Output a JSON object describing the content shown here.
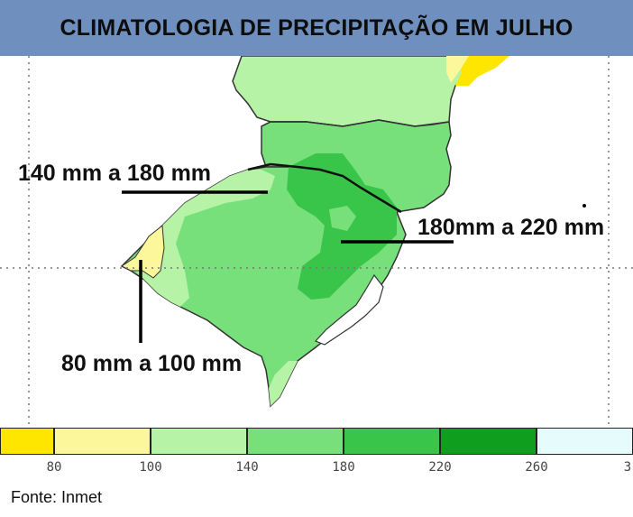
{
  "title": "CLIMATOLOGIA DE PRECIPITAÇÃO EM JULHO",
  "annotations": {
    "northwest": "140 mm a 180 mm",
    "east": "180mm a 220 mm",
    "southwest": "80 mm a 100 mm"
  },
  "legend": {
    "colors": [
      "#ffe600",
      "#fbf79a",
      "#b6f3a6",
      "#77e07a",
      "#39c54a",
      "#109e1e",
      "#e6fbfb",
      "#ffffff"
    ],
    "ticks": [
      "80",
      "100",
      "140",
      "180",
      "220",
      "260",
      "3"
    ]
  },
  "source": "Fonte: Inmet",
  "map_colors": {
    "ocean": "#ffffff",
    "light_green": "#b6f3a6",
    "medium_green": "#77e07a",
    "dark_green": "#39c54a",
    "yellow": "#fbf79a",
    "bright_yellow": "#ffe600"
  }
}
